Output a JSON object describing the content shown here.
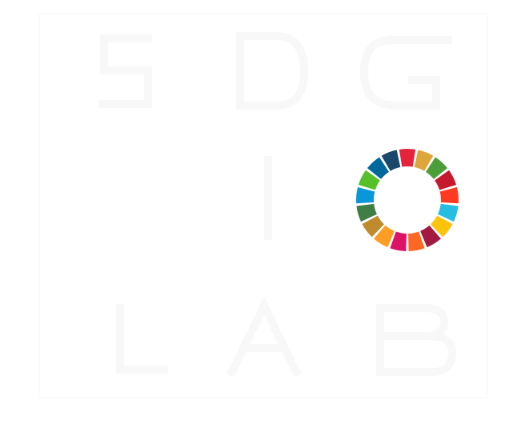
{
  "logo": {
    "letters": [
      "S",
      "D",
      "G",
      "L",
      "A",
      "B"
    ],
    "emblem": "sdg-color-wheel",
    "background_color": "#ffffff",
    "letter_color": "#f8f8f8",
    "wheel_colors": [
      "#e5243b",
      "#dda63a",
      "#4c9f38",
      "#c5192d",
      "#ff3a21",
      "#26bde2",
      "#fcc30b",
      "#a21942",
      "#fd6925",
      "#dd1367",
      "#fd9d24",
      "#bf8b2e",
      "#3f7e44",
      "#0a97d9",
      "#56c02b",
      "#00689d",
      "#19486a"
    ]
  }
}
